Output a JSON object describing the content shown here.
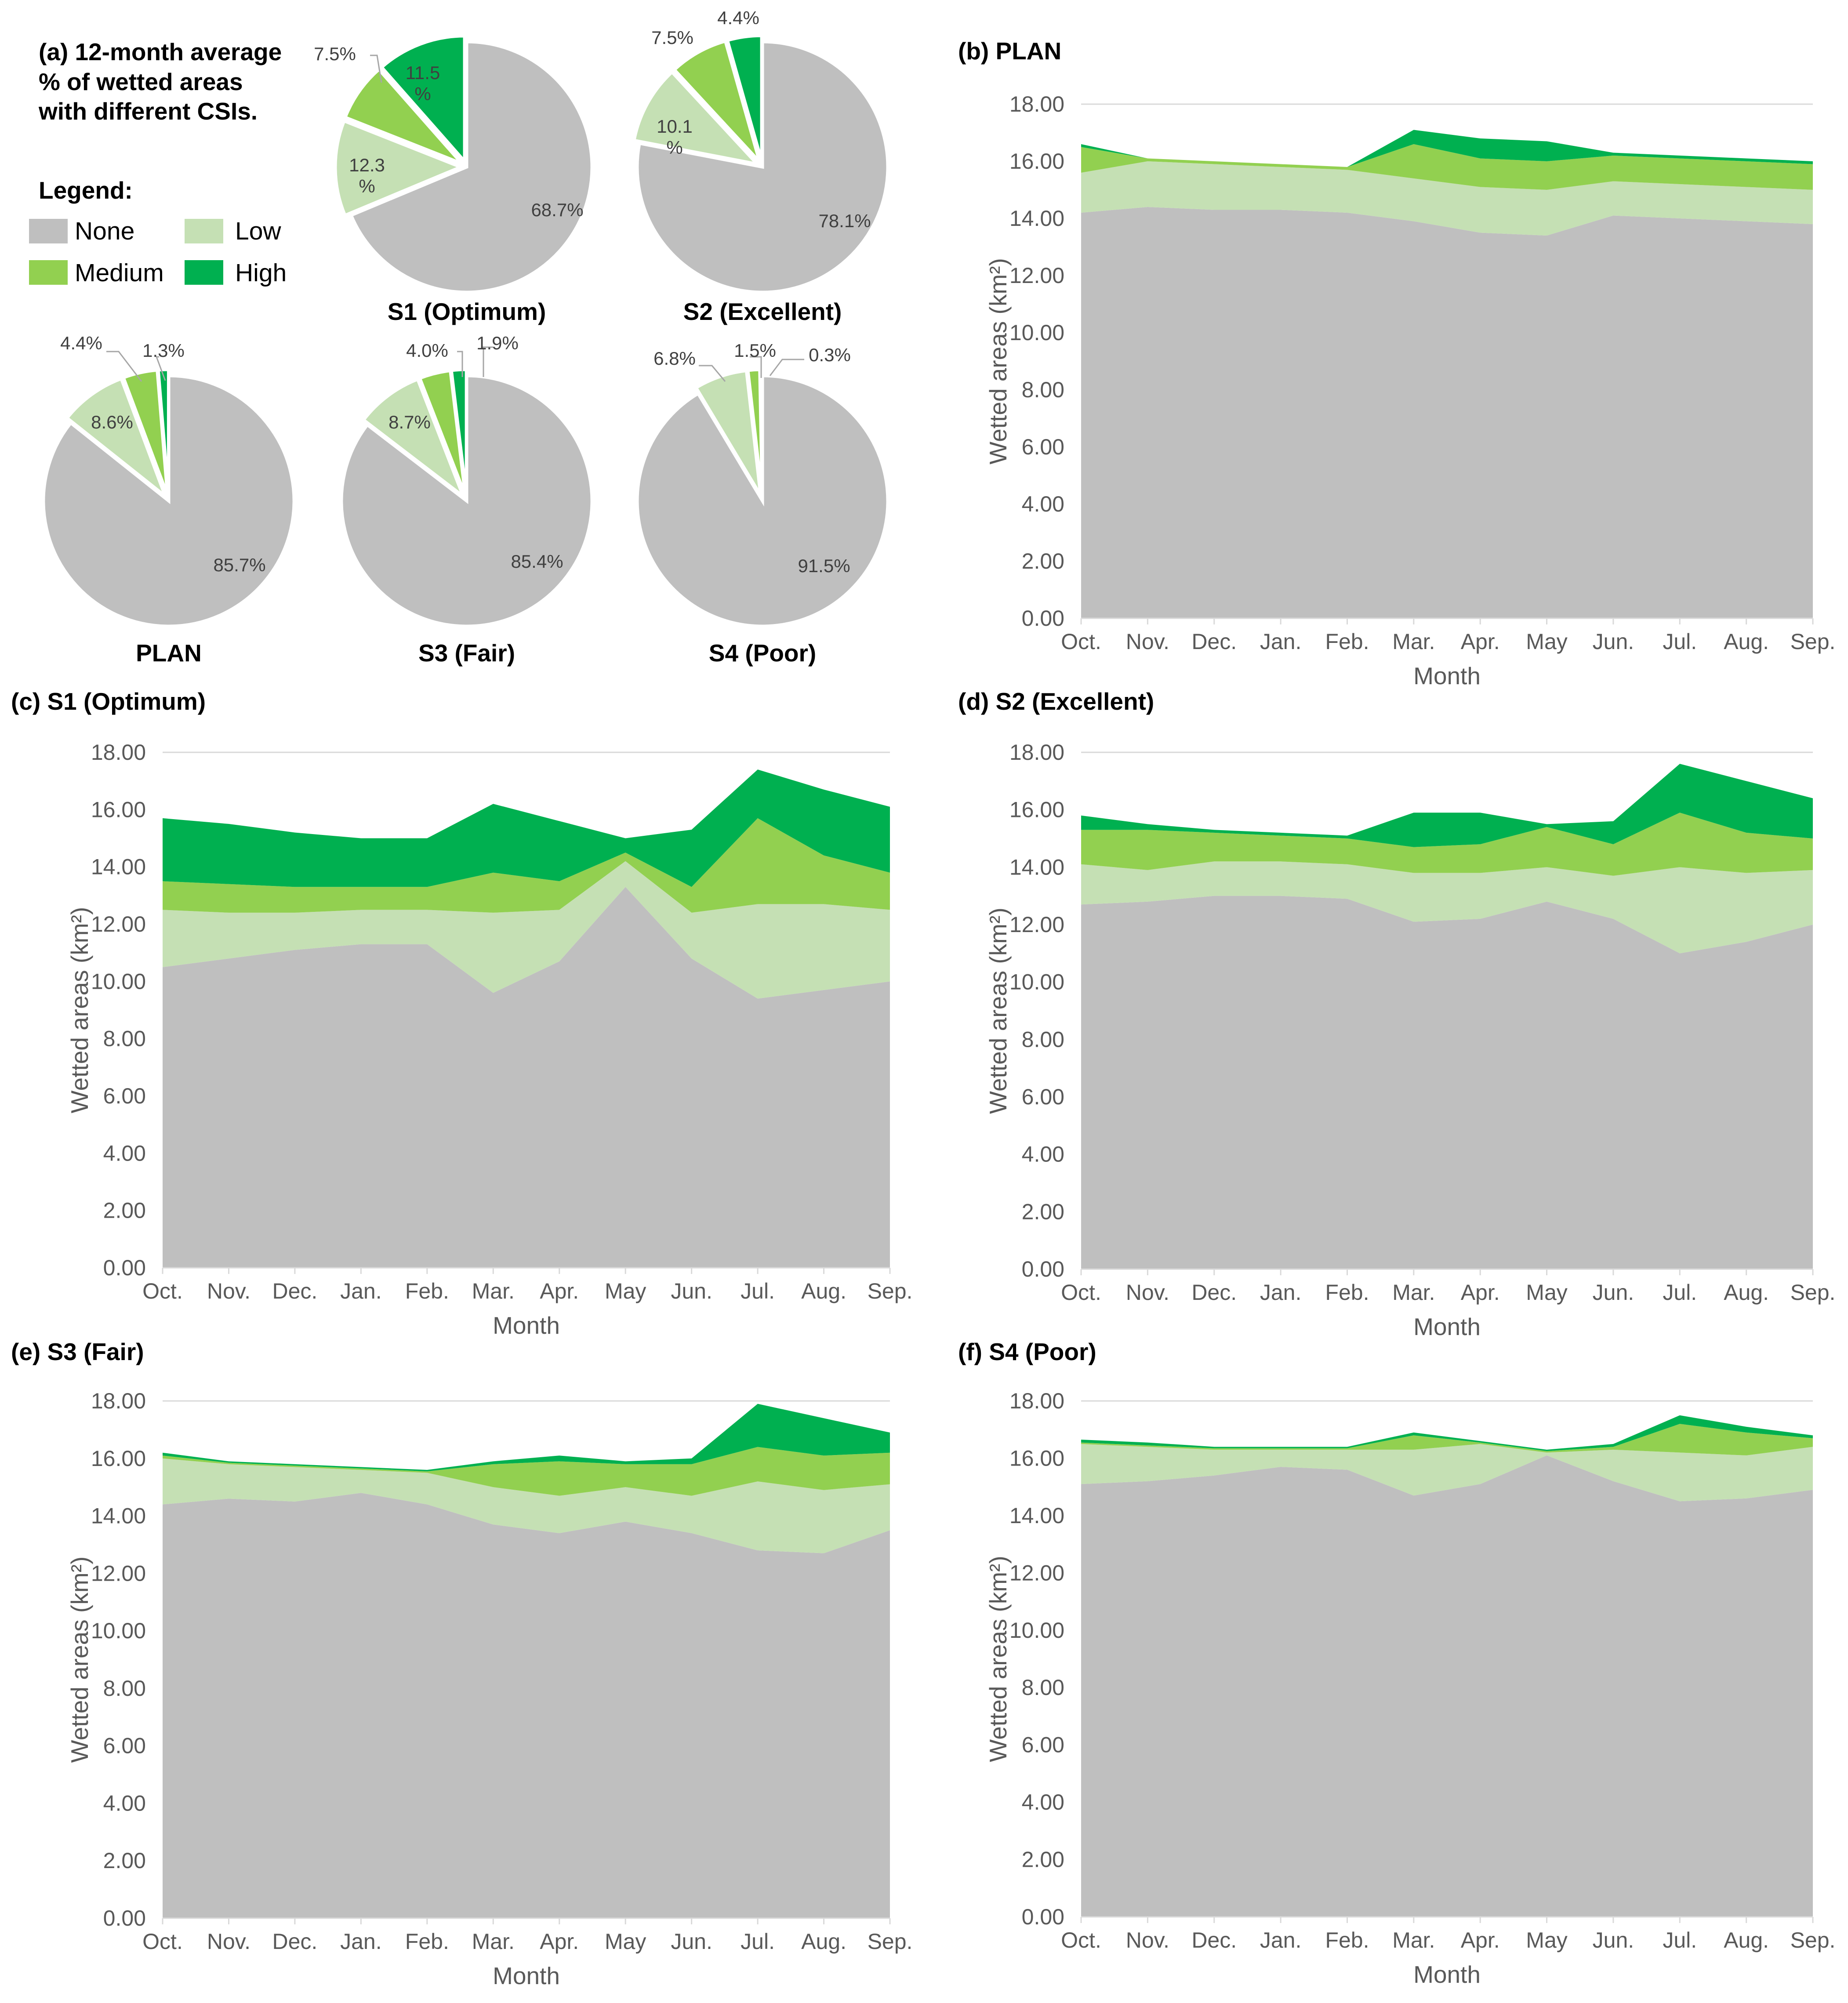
{
  "colors": {
    "none": "#BFBFBF",
    "low": "#C5E0B4",
    "medium": "#92D050",
    "high": "#00B050",
    "axis": "#D9D9D9",
    "text": "#595959"
  },
  "legend": {
    "title": "Legend:",
    "items": [
      {
        "key": "none",
        "label": "None"
      },
      {
        "key": "low",
        "label": "Low"
      },
      {
        "key": "medium",
        "label": "Medium"
      },
      {
        "key": "high",
        "label": "High"
      }
    ]
  },
  "pie_panel": {
    "title_lines": [
      "(a) 12-month average",
      "% of wetted areas",
      "with different CSIs."
    ]
  },
  "chart_data": [
    {
      "id": "pie-s1",
      "type": "pie",
      "title": "S1 (Optimum)",
      "categories": [
        "None",
        "Low",
        "Medium",
        "High"
      ],
      "values": [
        68.7,
        12.3,
        7.5,
        11.5
      ],
      "labels": [
        "68.7%",
        "12.3\n%",
        "7.5%",
        "11.5\n%"
      ]
    },
    {
      "id": "pie-s2",
      "type": "pie",
      "title": "S2 (Excellent)",
      "categories": [
        "None",
        "Low",
        "Medium",
        "High"
      ],
      "values": [
        78.1,
        10.1,
        7.5,
        4.4
      ],
      "labels": [
        "78.1%",
        "10.1\n%",
        "7.5%",
        "4.4%"
      ]
    },
    {
      "id": "pie-plan",
      "type": "pie",
      "title": "PLAN",
      "categories": [
        "None",
        "Low",
        "Medium",
        "High"
      ],
      "values": [
        85.7,
        8.6,
        4.4,
        1.3
      ],
      "labels": [
        "85.7%",
        "8.6%",
        "4.4%",
        "1.3%"
      ]
    },
    {
      "id": "pie-s3",
      "type": "pie",
      "title": "S3 (Fair)",
      "categories": [
        "None",
        "Low",
        "Medium",
        "High"
      ],
      "values": [
        85.4,
        8.7,
        4.0,
        1.9
      ],
      "labels": [
        "85.4%",
        "8.7%",
        "4.0%",
        "1.9%"
      ]
    },
    {
      "id": "pie-s4",
      "type": "pie",
      "title": "S4 (Poor)",
      "categories": [
        "None",
        "Low",
        "Medium",
        "High"
      ],
      "values": [
        91.5,
        6.8,
        1.5,
        0.3
      ],
      "labels": [
        "91.5%",
        "6.8%",
        "1.5%",
        "0.3%"
      ]
    },
    {
      "id": "area-plan",
      "type": "area",
      "stacked": true,
      "title": "(b) PLAN",
      "xlabel": "Month",
      "ylabel": "Wetted areas (km²)",
      "ylim": [
        0,
        18
      ],
      "yticks": [
        "0.00",
        "2.00",
        "4.00",
        "6.00",
        "8.00",
        "10.00",
        "12.00",
        "14.00",
        "16.00",
        "18.00"
      ],
      "categories": [
        "Oct.",
        "Nov.",
        "Dec.",
        "Jan.",
        "Feb.",
        "Mar.",
        "Apr.",
        "May",
        "Jun.",
        "Jul.",
        "Aug.",
        "Sep."
      ],
      "series": [
        {
          "name": "None",
          "values": [
            14.2,
            14.4,
            14.3,
            14.3,
            14.2,
            13.9,
            13.5,
            13.4,
            14.1,
            14.0,
            13.9,
            13.8
          ]
        },
        {
          "name": "Low",
          "values": [
            1.4,
            1.6,
            1.6,
            1.5,
            1.5,
            1.5,
            1.6,
            1.6,
            1.2,
            1.2,
            1.2,
            1.2
          ]
        },
        {
          "name": "Medium",
          "values": [
            0.9,
            0.1,
            0.1,
            0.1,
            0.1,
            1.2,
            1.0,
            1.0,
            0.9,
            0.9,
            0.9,
            0.9
          ]
        },
        {
          "name": "High",
          "values": [
            0.1,
            0.0,
            0.0,
            0.0,
            0.0,
            0.5,
            0.7,
            0.7,
            0.1,
            0.1,
            0.1,
            0.1
          ]
        }
      ]
    },
    {
      "id": "area-s1",
      "type": "area",
      "stacked": true,
      "title": "(c) S1 (Optimum)",
      "xlabel": "Month",
      "ylabel": "Wetted areas (km²)",
      "ylim": [
        0,
        18
      ],
      "yticks": [
        "0.00",
        "2.00",
        "4.00",
        "6.00",
        "8.00",
        "10.00",
        "12.00",
        "14.00",
        "16.00",
        "18.00"
      ],
      "categories": [
        "Oct.",
        "Nov.",
        "Dec.",
        "Jan.",
        "Feb.",
        "Mar.",
        "Apr.",
        "May",
        "Jun.",
        "Jul.",
        "Aug.",
        "Sep."
      ],
      "series": [
        {
          "name": "None",
          "values": [
            10.5,
            10.8,
            11.1,
            11.3,
            11.3,
            9.6,
            10.7,
            13.3,
            10.8,
            9.4,
            9.7,
            10.0
          ]
        },
        {
          "name": "Low",
          "values": [
            2.0,
            1.6,
            1.3,
            1.2,
            1.2,
            2.8,
            1.8,
            0.9,
            1.6,
            3.3,
            3.0,
            2.5
          ]
        },
        {
          "name": "Medium",
          "values": [
            1.0,
            1.0,
            0.9,
            0.8,
            0.8,
            1.4,
            1.0,
            0.3,
            0.9,
            3.0,
            1.7,
            1.3
          ]
        },
        {
          "name": "High",
          "values": [
            2.2,
            2.1,
            1.9,
            1.7,
            1.7,
            2.4,
            2.1,
            0.5,
            2.0,
            1.7,
            2.3,
            2.3
          ]
        }
      ]
    },
    {
      "id": "area-s2",
      "type": "area",
      "stacked": true,
      "title": "(d) S2 (Excellent)",
      "xlabel": "Month",
      "ylabel": "Wetted areas (km²)",
      "ylim": [
        0,
        18
      ],
      "yticks": [
        "0.00",
        "2.00",
        "4.00",
        "6.00",
        "8.00",
        "10.00",
        "12.00",
        "14.00",
        "16.00",
        "18.00"
      ],
      "categories": [
        "Oct.",
        "Nov.",
        "Dec.",
        "Jan.",
        "Feb.",
        "Mar.",
        "Apr.",
        "May",
        "Jun.",
        "Jul.",
        "Aug.",
        "Sep."
      ],
      "series": [
        {
          "name": "None",
          "values": [
            12.7,
            12.8,
            13.0,
            13.0,
            12.9,
            12.1,
            12.2,
            12.8,
            12.2,
            11.0,
            11.4,
            12.0
          ]
        },
        {
          "name": "Low",
          "values": [
            1.4,
            1.1,
            1.2,
            1.2,
            1.2,
            1.7,
            1.6,
            1.2,
            1.5,
            3.0,
            2.4,
            1.9
          ]
        },
        {
          "name": "Medium",
          "values": [
            1.2,
            1.4,
            1.0,
            0.9,
            0.9,
            0.9,
            1.0,
            1.4,
            1.1,
            1.9,
            1.4,
            1.1
          ]
        },
        {
          "name": "High",
          "values": [
            0.5,
            0.2,
            0.1,
            0.1,
            0.1,
            1.2,
            1.1,
            0.1,
            0.8,
            1.7,
            1.8,
            1.4
          ]
        }
      ]
    },
    {
      "id": "area-s3",
      "type": "area",
      "stacked": true,
      "title": "(e) S3 (Fair)",
      "xlabel": "Month",
      "ylabel": "Wetted areas (km²)",
      "ylim": [
        0,
        18
      ],
      "yticks": [
        "0.00",
        "2.00",
        "4.00",
        "6.00",
        "8.00",
        "10.00",
        "12.00",
        "14.00",
        "16.00",
        "18.00"
      ],
      "categories": [
        "Oct.",
        "Nov.",
        "Dec.",
        "Jan.",
        "Feb.",
        "Mar.",
        "Apr.",
        "May",
        "Jun.",
        "Jul.",
        "Aug.",
        "Sep."
      ],
      "series": [
        {
          "name": "None",
          "values": [
            14.4,
            14.6,
            14.5,
            14.8,
            14.4,
            13.7,
            13.4,
            13.8,
            13.4,
            12.8,
            12.7,
            13.5
          ]
        },
        {
          "name": "Low",
          "values": [
            1.6,
            1.2,
            1.2,
            0.8,
            1.1,
            1.3,
            1.3,
            1.2,
            1.3,
            2.4,
            2.2,
            1.6
          ]
        },
        {
          "name": "Medium",
          "values": [
            0.1,
            0.05,
            0.05,
            0.05,
            0.05,
            0.8,
            1.2,
            0.8,
            1.1,
            1.2,
            1.2,
            1.1
          ]
        },
        {
          "name": "High",
          "values": [
            0.1,
            0.05,
            0.05,
            0.05,
            0.05,
            0.1,
            0.2,
            0.1,
            0.2,
            1.5,
            1.3,
            0.7
          ]
        }
      ]
    },
    {
      "id": "area-s4",
      "type": "area",
      "stacked": true,
      "title": "(f) S4 (Poor)",
      "xlabel": "Month",
      "ylabel": "Wetted areas (km²)",
      "ylim": [
        0,
        18
      ],
      "yticks": [
        "0.00",
        "2.00",
        "4.00",
        "6.00",
        "8.00",
        "10.00",
        "12.00",
        "14.00",
        "16.00",
        "18.00"
      ],
      "categories": [
        "Oct.",
        "Nov.",
        "Dec.",
        "Jan.",
        "Feb.",
        "Mar.",
        "Apr.",
        "May",
        "Jun.",
        "Jul.",
        "Aug.",
        "Sep."
      ],
      "series": [
        {
          "name": "None",
          "values": [
            15.1,
            15.2,
            15.4,
            15.7,
            15.6,
            14.7,
            15.1,
            16.1,
            15.2,
            14.5,
            14.6,
            14.9
          ]
        },
        {
          "name": "Low",
          "values": [
            1.4,
            1.2,
            0.9,
            0.6,
            0.7,
            1.6,
            1.4,
            0.1,
            1.1,
            1.7,
            1.5,
            1.5
          ]
        },
        {
          "name": "Medium",
          "values": [
            0.05,
            0.05,
            0.05,
            0.05,
            0.05,
            0.5,
            0.05,
            0.05,
            0.1,
            1.0,
            0.8,
            0.3
          ]
        },
        {
          "name": "High",
          "values": [
            0.1,
            0.1,
            0.05,
            0.05,
            0.05,
            0.1,
            0.05,
            0.05,
            0.1,
            0.3,
            0.2,
            0.1
          ]
        }
      ]
    }
  ]
}
